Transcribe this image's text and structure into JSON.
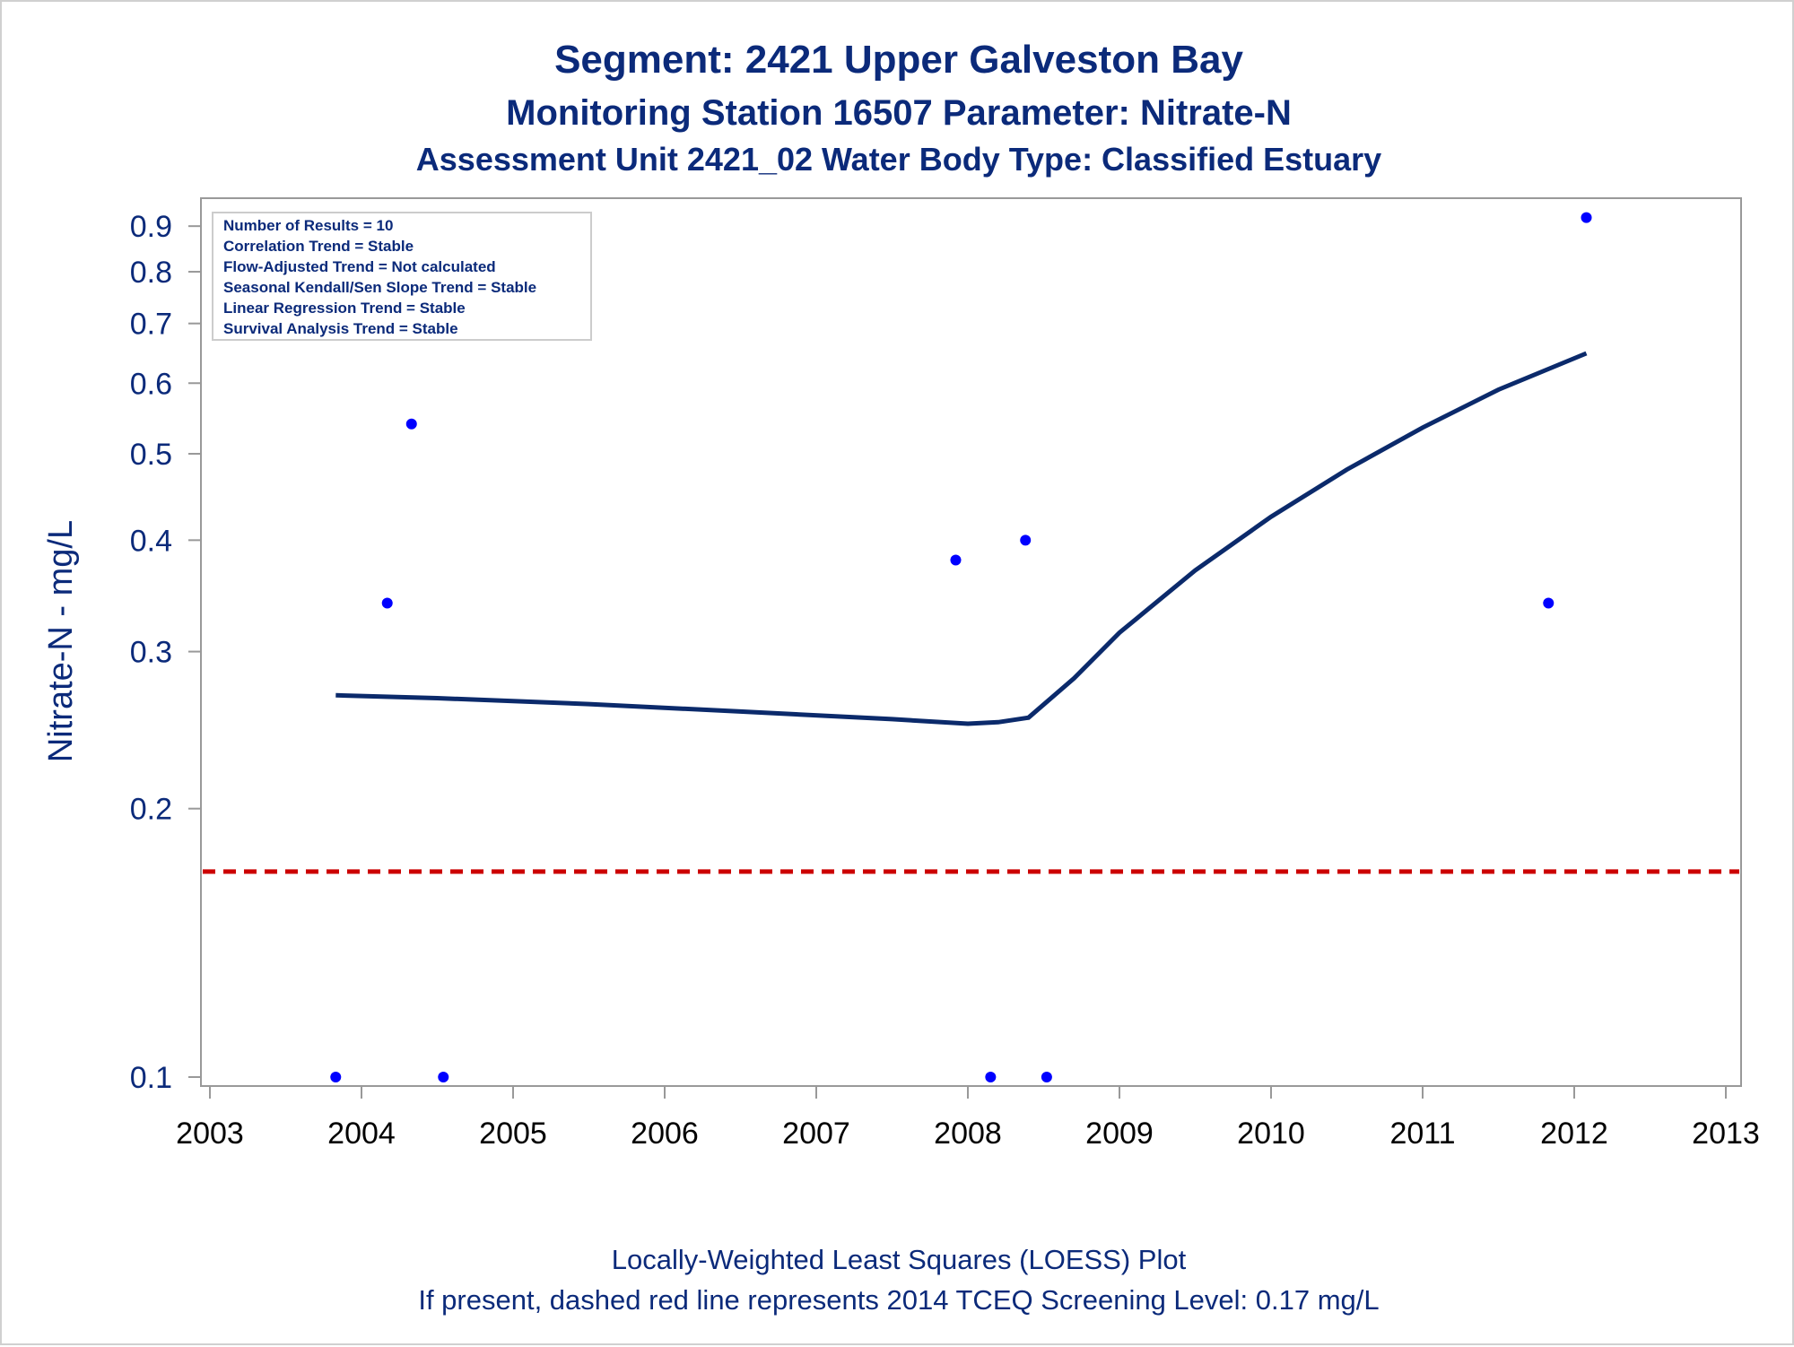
{
  "titles": [
    "Segment: 2421  Upper Galveston Bay",
    "Monitoring Station 16507 Parameter: Nitrate-N",
    "Assessment Unit 2421_02   Water Body Type: Classified Estuary"
  ],
  "footnotes": [
    "Locally-Weighted Least Squares (LOESS) Plot",
    "If present, dashed red line represents 2014 TCEQ Screening Level: 0.17 mg/L"
  ],
  "colors": {
    "text": "#0b2a7a",
    "points": "#0000ff",
    "loess": "#0b2a6b",
    "screening": "#cc0000",
    "axis": "#999999"
  },
  "chart_data": {
    "type": "scatter",
    "ylabel": "Nitrate-N - mg/L",
    "xlabel": "",
    "yscale": "log",
    "xlim": [
      2003,
      2013
    ],
    "ylim": [
      0.1,
      0.93
    ],
    "x_ticks": [
      2003,
      2004,
      2005,
      2006,
      2007,
      2008,
      2009,
      2010,
      2011,
      2012,
      2013
    ],
    "y_ticks": [
      0.1,
      0.2,
      0.3,
      0.4,
      0.5,
      0.6,
      0.7,
      0.8,
      0.9
    ],
    "grid": false,
    "stats_box": {
      "position": "top-left",
      "lines": [
        "Number of Results = 10",
        "Correlation Trend = Stable",
        "Flow-Adjusted Trend = Not calculated",
        "Seasonal Kendall/Sen Slope Trend = Stable",
        "Linear Regression Trend = Stable",
        "Survival Analysis Trend = Stable"
      ]
    },
    "points": [
      {
        "x": 2003.83,
        "y": 0.1
      },
      {
        "x": 2004.17,
        "y": 0.34
      },
      {
        "x": 2004.33,
        "y": 0.54
      },
      {
        "x": 2004.54,
        "y": 0.1
      },
      {
        "x": 2007.92,
        "y": 0.38
      },
      {
        "x": 2008.15,
        "y": 0.1
      },
      {
        "x": 2008.38,
        "y": 0.4
      },
      {
        "x": 2008.52,
        "y": 0.1
      },
      {
        "x": 2011.83,
        "y": 0.34
      },
      {
        "x": 2012.08,
        "y": 0.92
      }
    ],
    "loess": [
      {
        "x": 2003.83,
        "y": 0.268
      },
      {
        "x": 2004.5,
        "y": 0.266
      },
      {
        "x": 2005.5,
        "y": 0.262
      },
      {
        "x": 2006.5,
        "y": 0.257
      },
      {
        "x": 2007.5,
        "y": 0.252
      },
      {
        "x": 2008.0,
        "y": 0.249
      },
      {
        "x": 2008.2,
        "y": 0.25
      },
      {
        "x": 2008.4,
        "y": 0.253
      },
      {
        "x": 2008.7,
        "y": 0.28
      },
      {
        "x": 2009.0,
        "y": 0.315
      },
      {
        "x": 2009.5,
        "y": 0.37
      },
      {
        "x": 2010.0,
        "y": 0.425
      },
      {
        "x": 2010.5,
        "y": 0.48
      },
      {
        "x": 2011.0,
        "y": 0.535
      },
      {
        "x": 2011.5,
        "y": 0.59
      },
      {
        "x": 2012.08,
        "y": 0.648
      }
    ],
    "reference_line": {
      "y": 0.17,
      "style": "dashed"
    }
  }
}
